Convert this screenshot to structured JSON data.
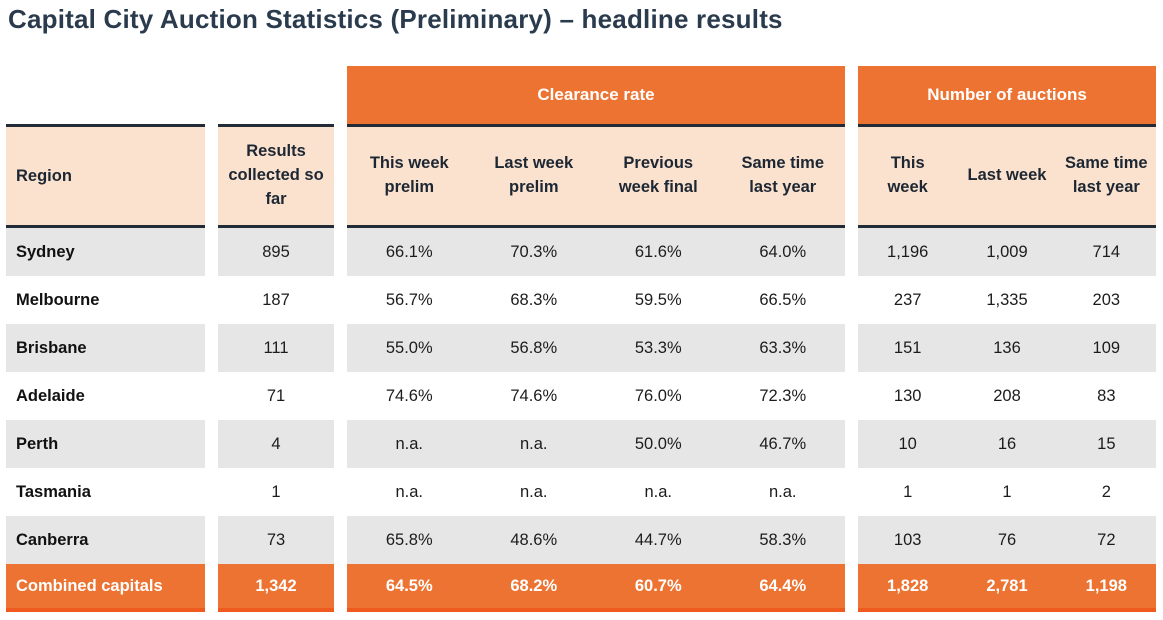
{
  "title": "Capital City Auction Statistics (Preliminary) – headline results",
  "colors": {
    "accent_orange": "#ED7332",
    "header_peach": "#FBE2CE",
    "row_gray": "#E7E6E6",
    "dark_border": "#232B36",
    "total_bottom_border": "#EF5A1F",
    "title_navy": "#2B3B4E"
  },
  "table": {
    "groups": [
      {
        "label": "Clearance rate"
      },
      {
        "label": "Number of auctions"
      }
    ],
    "headers": {
      "region": "Region",
      "results": "Results\ncollected so\nfar",
      "clearance": [
        "This week\nprelim",
        "Last week\nprelim",
        "Previous\nweek final",
        "Same time\nlast year"
      ],
      "auctions": [
        "This\nweek",
        "Last week",
        "Same time\nlast year"
      ]
    },
    "rows": [
      {
        "region": "Sydney",
        "results": "895",
        "clearance": [
          "66.1%",
          "70.3%",
          "61.6%",
          "64.0%"
        ],
        "auctions": [
          "1,196",
          "1,009",
          "714"
        ]
      },
      {
        "region": "Melbourne",
        "results": "187",
        "clearance": [
          "56.7%",
          "68.3%",
          "59.5%",
          "66.5%"
        ],
        "auctions": [
          "237",
          "1,335",
          "203"
        ]
      },
      {
        "region": "Brisbane",
        "results": "111",
        "clearance": [
          "55.0%",
          "56.8%",
          "53.3%",
          "63.3%"
        ],
        "auctions": [
          "151",
          "136",
          "109"
        ]
      },
      {
        "region": "Adelaide",
        "results": "71",
        "clearance": [
          "74.6%",
          "74.6%",
          "76.0%",
          "72.3%"
        ],
        "auctions": [
          "130",
          "208",
          "83"
        ]
      },
      {
        "region": "Perth",
        "results": "4",
        "clearance": [
          "n.a.",
          "n.a.",
          "50.0%",
          "46.7%"
        ],
        "auctions": [
          "10",
          "16",
          "15"
        ]
      },
      {
        "region": "Tasmania",
        "results": "1",
        "clearance": [
          "n.a.",
          "n.a.",
          "n.a.",
          "n.a."
        ],
        "auctions": [
          "1",
          "1",
          "2"
        ]
      },
      {
        "region": "Canberra",
        "results": "73",
        "clearance": [
          "65.8%",
          "48.6%",
          "44.7%",
          "58.3%"
        ],
        "auctions": [
          "103",
          "76",
          "72"
        ]
      }
    ],
    "total_row": {
      "region": "Combined capitals",
      "results": "1,342",
      "clearance": [
        "64.5%",
        "68.2%",
        "60.7%",
        "64.4%"
      ],
      "auctions": [
        "1,828",
        "2,781",
        "1,198"
      ]
    }
  }
}
